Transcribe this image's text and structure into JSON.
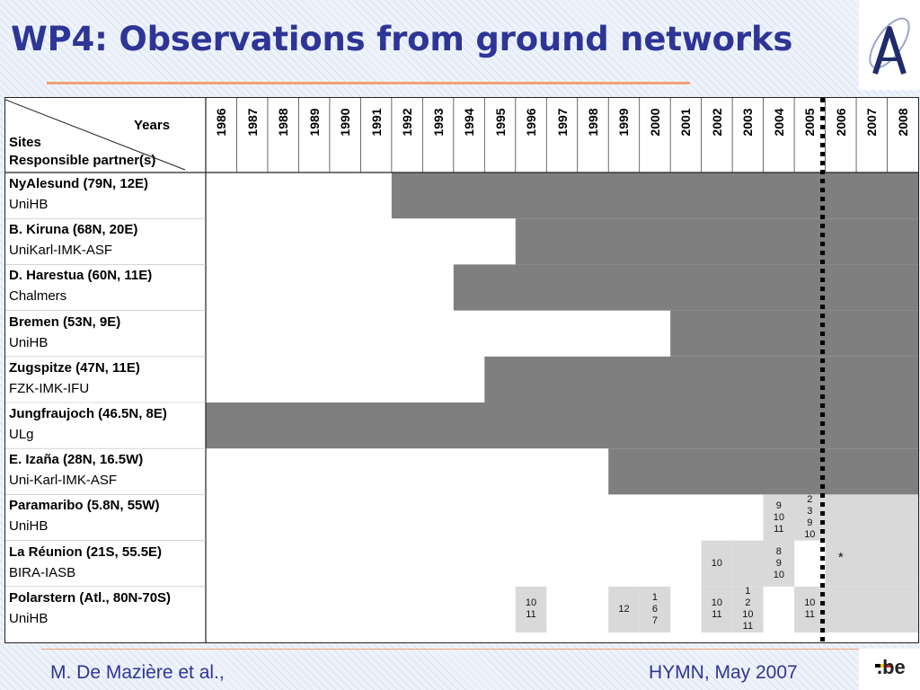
{
  "slide": {
    "title": "WP4: Observations from ground networks",
    "footer_author": "M. De Mazière et al.,",
    "footer_event": "HYMN, May 2007",
    "footer_logo_text": ".be"
  },
  "table": {
    "corner": {
      "years": "Years",
      "sites": "Sites",
      "partners": "Responsible partner(s)"
    },
    "years": [
      "1986",
      "1987",
      "1988",
      "1989",
      "1990",
      "1991",
      "1992",
      "1993",
      "1994",
      "1995",
      "1996",
      "1997",
      "1998",
      "1999",
      "2000",
      "2001",
      "2002",
      "2003",
      "2004",
      "2005",
      "2006",
      "2007",
      "2008"
    ],
    "sites": [
      {
        "name": "NyAlesund (79N, 12E)",
        "partner": "UniHB",
        "start": "1992"
      },
      {
        "name": "B. Kiruna (68N, 20E)",
        "partner": "UniKarl-IMK-ASF",
        "start": "1996"
      },
      {
        "name": "D. Harestua (60N, 11E)",
        "partner": "Chalmers",
        "start": "1994"
      },
      {
        "name": "Bremen (53N, 9E)",
        "partner": "UniHB",
        "start": "2001"
      },
      {
        "name": "Zugspitze (47N, 11E)",
        "partner": "FZK-IMK-IFU",
        "start": "1995"
      },
      {
        "name": "Jungfraujoch (46.5N, 8E)",
        "partner": "ULg",
        "start": "1986"
      },
      {
        "name": "E. Izaña (28N, 16.5W)",
        "partner": "Uni-Karl-IMK-ASF",
        "start": "1999"
      },
      {
        "name": "Paramaribo (5.8N, 55W)",
        "partner": "UniHB",
        "campaigns": [
          {
            "year": "2004",
            "months": "9\n10\n11"
          },
          {
            "year": "2005",
            "months": "2\n3\n9\n10"
          }
        ]
      },
      {
        "name": "La Réunion (21S, 55.5E)",
        "partner": "BIRA-IASB",
        "campaigns": [
          {
            "year": "2002",
            "months": "10"
          },
          {
            "year": "2003",
            "months": ""
          },
          {
            "year": "2004",
            "months": "8\n9\n10"
          }
        ],
        "planned_mark": "*"
      },
      {
        "name": "Polarstern (Atl., 80N-70S)",
        "partner": "UniHB",
        "campaigns": [
          {
            "year": "1996",
            "months": "10\n11"
          },
          {
            "year": "1999",
            "months": "12"
          },
          {
            "year": "2000",
            "months": "1\n6\n7"
          },
          {
            "year": "2002",
            "months": "10\n11"
          },
          {
            "year": "2003",
            "months": "1\n2\n10\n11"
          },
          {
            "year": "2005",
            "months": "10\n11"
          }
        ]
      }
    ],
    "current_year_divider": "2006",
    "colors": {
      "continuous": "#7f7f7f",
      "campaign": "#d9d9d9",
      "divider": "#000000"
    }
  }
}
